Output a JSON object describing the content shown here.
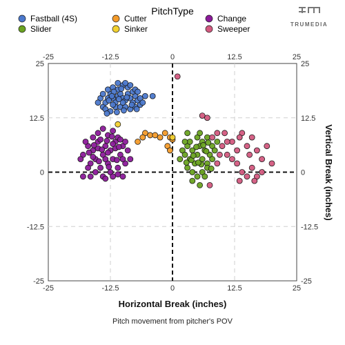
{
  "logo": {
    "text": "TRUMEDIA"
  },
  "caption": "Pitch movement from pitcher's POV",
  "chart_data": {
    "type": "scatter",
    "legend_title": "PitchType",
    "legend_placement": "top",
    "xlabel": "Horizontal Break (inches)",
    "ylabel": "Vertical Break (inches)",
    "xlim": [
      -25,
      25
    ],
    "ylim": [
      -25,
      25
    ],
    "x_ticks": [
      -25,
      -12.5,
      0,
      12.5,
      25
    ],
    "y_ticks": [
      -25,
      -12.5,
      0,
      12.5,
      25
    ],
    "x_tick_labels": [
      "-25",
      "-12.5",
      "0",
      "12.5",
      "25"
    ],
    "y_tick_labels": [
      "-25",
      "-12.5",
      "0",
      "12.5",
      "25"
    ],
    "grid": true,
    "reference_lines": {
      "x": 0,
      "y": 0
    },
    "series": [
      {
        "name": "Fastball (4S)",
        "color": "#4b78cc",
        "points": [
          [
            -14,
            15
          ],
          [
            -13.5,
            16
          ],
          [
            -13,
            17
          ],
          [
            -12.5,
            18
          ],
          [
            -12,
            17
          ],
          [
            -11.5,
            16
          ],
          [
            -11,
            17.5
          ],
          [
            -10.5,
            18
          ],
          [
            -10,
            17
          ],
          [
            -9.5,
            16.5
          ],
          [
            -9,
            18
          ],
          [
            -8.5,
            17
          ],
          [
            -8,
            16
          ],
          [
            -7.5,
            17.5
          ],
          [
            -7,
            16.5
          ],
          [
            -6.5,
            17
          ],
          [
            -14.5,
            17
          ],
          [
            -13,
            19
          ],
          [
            -12,
            19.5
          ],
          [
            -11,
            19
          ],
          [
            -10,
            20
          ],
          [
            -9,
            19.5
          ],
          [
            -8,
            18.5
          ],
          [
            -7.5,
            19
          ],
          [
            -13.5,
            14.5
          ],
          [
            -12.5,
            14
          ],
          [
            -11.5,
            15
          ],
          [
            -10.5,
            15
          ],
          [
            -9.5,
            15
          ],
          [
            -8.5,
            14.5
          ],
          [
            -7.5,
            15
          ],
          [
            -6.5,
            15.5
          ],
          [
            -14,
            18
          ],
          [
            -11,
            20.5
          ],
          [
            -9.5,
            20.5
          ],
          [
            -8.5,
            20
          ],
          [
            -12,
            15.5
          ],
          [
            -10,
            16
          ],
          [
            -7,
            18.5
          ],
          [
            -5.5,
            17.5
          ],
          [
            -4,
            17.5
          ],
          [
            -6,
            16
          ],
          [
            -15,
            16
          ],
          [
            -12.8,
            16.5
          ],
          [
            -11.8,
            18.5
          ],
          [
            -10.3,
            19.2
          ],
          [
            -9.2,
            17.2
          ],
          [
            -8.2,
            15.5
          ],
          [
            -7.2,
            14.5
          ],
          [
            -13.2,
            13.5
          ],
          [
            -11.2,
            13.8
          ],
          [
            -9.8,
            14.2
          ],
          [
            -12.2,
            17.5
          ],
          [
            -10.8,
            16.8
          ]
        ]
      },
      {
        "name": "Cutter",
        "color": "#f39b2a",
        "points": [
          [
            -5.5,
            9
          ],
          [
            -4.5,
            8.5
          ],
          [
            -2.5,
            8
          ],
          [
            -1.5,
            9
          ],
          [
            -0.5,
            8
          ],
          [
            0,
            7.5
          ],
          [
            -1,
            6
          ],
          [
            -0.5,
            5
          ],
          [
            -7,
            7
          ],
          [
            -3.5,
            8.5
          ],
          [
            -6,
            8
          ]
        ]
      },
      {
        "name": "Sinker",
        "color": "#f2d130",
        "points": [
          [
            -11,
            11
          ],
          [
            0,
            8
          ]
        ]
      },
      {
        "name": "Change",
        "color": "#8c1a9a",
        "points": [
          [
            -18,
            4
          ],
          [
            -17,
            6
          ],
          [
            -16.5,
            2
          ],
          [
            -16,
            5
          ],
          [
            -15.5,
            3
          ],
          [
            -15,
            7
          ],
          [
            -14.5,
            1
          ],
          [
            -14,
            4
          ],
          [
            -13.5,
            6
          ],
          [
            -13,
            2
          ],
          [
            -12.5,
            5
          ],
          [
            -12,
            3
          ],
          [
            -11.5,
            7
          ],
          [
            -11,
            1
          ],
          [
            -10.5,
            4
          ],
          [
            -10,
            6
          ],
          [
            -9.5,
            2
          ],
          [
            -16,
            8
          ],
          [
            -15,
            9
          ],
          [
            -14,
            10
          ],
          [
            -13,
            8.5
          ],
          [
            -12,
            9.5
          ],
          [
            -11,
            8
          ],
          [
            -17,
            1
          ],
          [
            -15.5,
            0
          ],
          [
            -14,
            -1
          ],
          [
            -12.5,
            0
          ],
          [
            -11,
            -0.5
          ],
          [
            -10,
            3
          ],
          [
            -9,
            5
          ],
          [
            -8.5,
            3
          ],
          [
            -18,
            -1
          ],
          [
            -16.5,
            -1
          ],
          [
            -13.5,
            -1.5
          ],
          [
            -12,
            -1
          ],
          [
            -15,
            5.5
          ],
          [
            -13,
            4.5
          ],
          [
            -11.5,
            5.5
          ],
          [
            -10.5,
            7.5
          ],
          [
            -16,
            3.5
          ],
          [
            -14.5,
            7.5
          ],
          [
            -12,
            6.5
          ],
          [
            -13.5,
            3
          ],
          [
            -17.5,
            7
          ],
          [
            -18.5,
            3
          ],
          [
            -10,
            -1
          ],
          [
            -9.5,
            7
          ],
          [
            -14.8,
            2.5
          ],
          [
            -12.8,
            1.2
          ],
          [
            -11.2,
            2.8
          ],
          [
            -15.8,
            6.2
          ],
          [
            -13.2,
            7.2
          ],
          [
            -16.8,
            4.5
          ],
          [
            -14.2,
            5.2
          ],
          [
            -12.2,
            8.2
          ],
          [
            -10.8,
            5.8
          ]
        ]
      },
      {
        "name": "Slider",
        "color": "#6aa321",
        "points": [
          [
            2,
            5
          ],
          [
            2.5,
            4
          ],
          [
            3,
            6
          ],
          [
            3.5,
            3
          ],
          [
            4,
            5
          ],
          [
            4.5,
            2
          ],
          [
            5,
            4
          ],
          [
            5.5,
            6
          ],
          [
            6,
            3
          ],
          [
            6.5,
            5
          ],
          [
            7,
            2
          ],
          [
            7.5,
            4
          ],
          [
            8,
            6
          ],
          [
            3,
            1
          ],
          [
            4,
            0
          ],
          [
            5,
            -1
          ],
          [
            6,
            0
          ],
          [
            7,
            1
          ],
          [
            8,
            3
          ],
          [
            3.5,
            7
          ],
          [
            5,
            8
          ],
          [
            6,
            7
          ],
          [
            7,
            8
          ],
          [
            4,
            -2
          ],
          [
            5.5,
            -3
          ],
          [
            6.5,
            -1
          ],
          [
            2.5,
            7
          ],
          [
            1.5,
            3
          ],
          [
            8.5,
            5
          ],
          [
            9,
            7
          ],
          [
            3.8,
            2.8
          ],
          [
            4.8,
            5.8
          ],
          [
            5.8,
            1.8
          ],
          [
            6.8,
            4.8
          ],
          [
            7.8,
            0.8
          ],
          [
            2.8,
            2.2
          ],
          [
            4.2,
            3.8
          ],
          [
            5.2,
            2.2
          ],
          [
            6.2,
            6.2
          ],
          [
            7.2,
            6.8
          ],
          [
            5.5,
            9
          ],
          [
            3,
            9
          ]
        ]
      },
      {
        "name": "Sweeper",
        "color": "#d35a80",
        "points": [
          [
            1,
            22
          ],
          [
            6,
            13
          ],
          [
            7,
            12.5
          ],
          [
            8,
            8
          ],
          [
            9,
            9
          ],
          [
            10,
            6
          ],
          [
            11,
            4
          ],
          [
            12,
            7
          ],
          [
            13,
            5
          ],
          [
            14,
            9
          ],
          [
            15,
            6
          ],
          [
            16,
            8
          ],
          [
            17,
            5
          ],
          [
            18,
            3
          ],
          [
            19,
            6
          ],
          [
            20,
            2
          ],
          [
            13,
            2
          ],
          [
            14,
            0
          ],
          [
            15,
            -1
          ],
          [
            16,
            1
          ],
          [
            17,
            -1
          ],
          [
            18,
            0
          ],
          [
            12,
            3
          ],
          [
            11,
            7
          ],
          [
            10.5,
            9
          ],
          [
            9.5,
            4
          ],
          [
            13.5,
            8
          ],
          [
            15.5,
            4
          ],
          [
            7.5,
            -3
          ],
          [
            9,
            2
          ],
          [
            13.5,
            -2
          ],
          [
            16.5,
            -2
          ]
        ]
      }
    ]
  }
}
